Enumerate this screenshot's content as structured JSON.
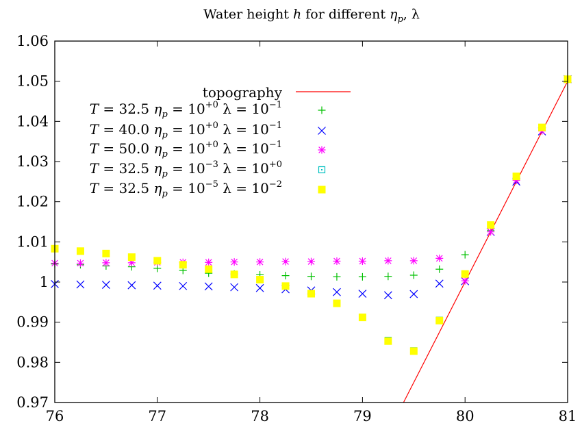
{
  "chart_data": {
    "type": "scatter",
    "title": "Water height h for different ηp, λ",
    "title_parts": [
      "Water height ",
      "h",
      " for different ",
      "η",
      "p",
      ", λ"
    ],
    "xlabel": "",
    "ylabel": "",
    "xlim": [
      76,
      81
    ],
    "ylim": [
      0.97,
      1.06
    ],
    "x_ticks": [
      "76",
      "77",
      "78",
      "79",
      "80",
      "81"
    ],
    "y_ticks": [
      "0.97",
      "0.98",
      "0.99",
      "1",
      "1.01",
      "1.02",
      "1.03",
      "1.04",
      "1.05",
      "1.06"
    ],
    "grid": false,
    "legend_position": "center-left",
    "topography": {
      "name": "topography",
      "color": "#ff0000",
      "x": [
        79.4,
        81.0
      ],
      "y": [
        0.97,
        1.05
      ]
    },
    "series": [
      {
        "key": "s1",
        "marker": "plus",
        "color": "#00c000",
        "label_parts": [
          "T",
          " = 32.5 ",
          "η",
          "p",
          " = 10",
          "+0",
          " λ = 10",
          "−1"
        ],
        "x": [
          76,
          76.25,
          76.5,
          76.75,
          77,
          77.25,
          77.5,
          77.75,
          78,
          78.25,
          78.5,
          78.75,
          79,
          79.25,
          79.5,
          79.75,
          80,
          80.25,
          80.5,
          80.75,
          81
        ],
        "y": [
          1.0045,
          1.0043,
          1.004,
          1.0038,
          1.0034,
          1.0029,
          1.0022,
          1.002,
          1.0018,
          1.0016,
          1.0014,
          1.0013,
          1.0013,
          1.0014,
          1.0017,
          1.0032,
          1.0068,
          1.0128,
          1.0255,
          1.0378,
          1.0505
        ]
      },
      {
        "key": "s2",
        "marker": "cross",
        "color": "#0000ff",
        "label_parts": [
          "T",
          " = 40.0 ",
          "η",
          "p",
          " = 10",
          "+0",
          " λ = 10",
          "−1"
        ],
        "x": [
          76,
          76.25,
          76.5,
          76.75,
          77,
          77.25,
          77.5,
          77.75,
          78,
          78.25,
          78.5,
          78.75,
          79,
          79.25,
          79.5,
          79.75,
          80,
          80.25,
          80.5,
          80.75,
          81
        ],
        "y": [
          0.9995,
          0.9994,
          0.9993,
          0.9992,
          0.9991,
          0.999,
          0.9989,
          0.9987,
          0.9985,
          0.9982,
          0.9979,
          0.9975,
          0.9971,
          0.9967,
          0.997,
          0.9996,
          1.0002,
          1.0125,
          1.025,
          1.0375,
          1.0505
        ]
      },
      {
        "key": "s3",
        "marker": "star",
        "color": "#ff00ff",
        "label_parts": [
          "T",
          " = 50.0 ",
          "η",
          "p",
          " = 10",
          "+0",
          " λ = 10",
          "−1"
        ],
        "x": [
          76,
          76.25,
          76.5,
          76.75,
          77,
          77.25,
          77.5,
          77.75,
          78,
          78.25,
          78.5,
          78.75,
          79,
          79.25,
          79.5,
          79.75,
          80,
          80.25,
          80.5,
          80.75,
          81
        ],
        "y": [
          1.0047,
          1.0047,
          1.0048,
          1.0048,
          1.0049,
          1.0049,
          1.0049,
          1.005,
          1.005,
          1.0051,
          1.0051,
          1.0052,
          1.0052,
          1.0053,
          1.0053,
          1.0059,
          1.0003,
          1.0125,
          1.0253,
          1.0376,
          1.0505
        ]
      },
      {
        "key": "s4",
        "marker": "square-open",
        "color": "#00c0c0",
        "label_parts": [
          "T",
          " = 32.5 ",
          "η",
          "p",
          " = 10",
          "−3",
          " λ = 10",
          "+0"
        ],
        "x": [
          76,
          76.25,
          76.5,
          76.75,
          77,
          77.25,
          77.5,
          77.75,
          78,
          78.25,
          78.5,
          78.75,
          79,
          79.25,
          79.5,
          79.75,
          80,
          80.25,
          80.5,
          80.75,
          81
        ],
        "y": [
          1.0083,
          1.0077,
          1.0071,
          1.0062,
          1.0053,
          1.0043,
          1.0032,
          1.0019,
          1.0006,
          0.999,
          0.9971,
          0.9947,
          0.9912,
          0.9855,
          0.9829,
          0.9905,
          1.002,
          1.0142,
          1.0263,
          1.0385,
          1.0505
        ]
      },
      {
        "key": "s5",
        "marker": "square-filled",
        "color": "#ffff00",
        "label_parts": [
          "T",
          " = 32.5 ",
          "η",
          "p",
          " = 10",
          "−5",
          " λ = 10",
          "−2"
        ],
        "x": [
          76,
          76.25,
          76.5,
          76.75,
          77,
          77.25,
          77.5,
          77.75,
          78,
          78.25,
          78.5,
          78.75,
          79,
          79.25,
          79.5,
          79.75,
          80,
          80.25,
          80.5,
          80.75,
          81
        ],
        "y": [
          1.0083,
          1.0077,
          1.0071,
          1.0062,
          1.0053,
          1.0043,
          1.0032,
          1.0019,
          1.0006,
          0.999,
          0.9971,
          0.9947,
          0.9912,
          0.9853,
          0.9828,
          0.9904,
          1.002,
          1.0142,
          1.0263,
          1.0385,
          1.0505
        ]
      }
    ]
  }
}
